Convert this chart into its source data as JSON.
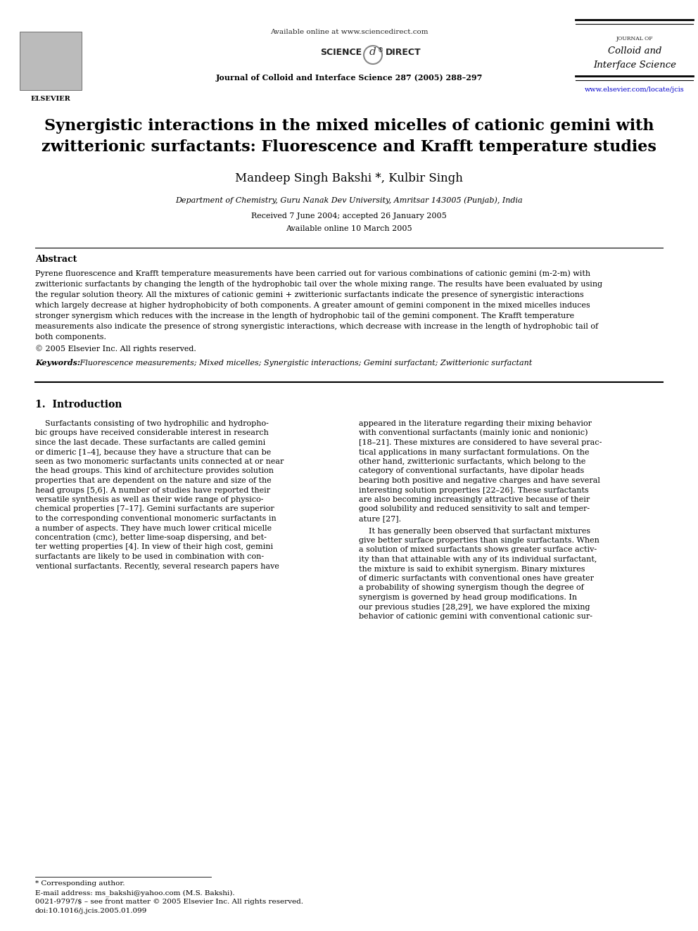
{
  "bg_color": "#ffffff",
  "page_width": 9.92,
  "page_height": 13.23,
  "header": {
    "available_online": "Available online at www.sciencedirect.com",
    "journal_name_bold": "Journal of Colloid and Interface Science 287 (2005) 288–297",
    "journal_right_small": "JOURNAL OF",
    "journal_right_large1": "Colloid and",
    "journal_right_large2": "Interface Science",
    "url": "www.elsevier.com/locate/jcis"
  },
  "title_line1": "Synergistic interactions in the mixed micelles of cationic gemini with",
  "title_line2": "zwitterionic surfactants: Fluorescence and Krafft temperature studies",
  "authors": "Mandeep Singh Bakshi *, Kulbir Singh",
  "affiliation": "Department of Chemistry, Guru Nanak Dev University, Amritsar 143005 (Punjab), India",
  "received": "Received 7 June 2004; accepted 26 January 2005",
  "available": "Available online 10 March 2005",
  "abstract_heading": "Abstract",
  "abstract_body": "Pyrene fluorescence and Krafft temperature measurements have been carried out for various combinations of cationic gemini (m-2-m) with\nzwitterionic surfactants by changing the length of the hydrophobic tail over the whole mixing range. The results have been evaluated by using\nthe regular solution theory. All the mixtures of cationic gemini + zwitterionic surfactants indicate the presence of synergistic interactions\nwhich largely decrease at higher hydrophobicity of both components. A greater amount of gemini component in the mixed micelles induces\nstronger synergism which reduces with the increase in the length of hydrophobic tail of the gemini component. The Krafft temperature\nmeasurements also indicate the presence of strong synergistic interactions, which decrease with increase in the length of hydrophobic tail of\nboth components.",
  "copyright": "© 2005 Elsevier Inc. All rights reserved.",
  "keywords_label": "Keywords:",
  "keywords_text": " Fluorescence measurements; Mixed micelles; Synergistic interactions; Gemini surfactant; Zwitterionic surfactant",
  "section1_heading": "1.  Introduction",
  "col1_para1": "    Surfactants consisting of two hydrophilic and hydropho-\nbic groups have received considerable interest in research\nsince the last decade. These surfactants are called gemini\nor dimeric [1–4], because they have a structure that can be\nseen as two monomeric surfactants units connected at or near\nthe head groups. This kind of architecture provides solution\nproperties that are dependent on the nature and size of the\nhead groups [5,6]. A number of studies have reported their\nversatile synthesis as well as their wide range of physico-\nchemical properties [7–17]. Gemini surfactants are superior\nto the corresponding conventional monomeric surfactants in\na number of aspects. They have much lower critical micelle\nconcentration (cmc), better lime-soap dispersing, and bet-\nter wetting properties [4]. In view of their high cost, gemini\nsurfactants are likely to be used in combination with con-\nventional surfactants. Recently, several research papers have",
  "col2_para1": "appeared in the literature regarding their mixing behavior\nwith conventional surfactants (mainly ionic and nonionic)\n[18–21]. These mixtures are considered to have several prac-\ntical applications in many surfactant formulations. On the\nother hand, zwitterionic surfactants, which belong to the\ncategory of conventional surfactants, have dipolar heads\nbearing both positive and negative charges and have several\ninteresting solution properties [22–26]. These surfactants\nare also becoming increasingly attractive because of their\ngood solubility and reduced sensitivity to salt and temper-\nature [27].",
  "col2_para2": "    It has generally been observed that surfactant mixtures\ngive better surface properties than single surfactants. When\na solution of mixed surfactants shows greater surface activ-\nity than that attainable with any of its individual surfactant,\nthe mixture is said to exhibit synergism. Binary mixtures\nof dimeric surfactants with conventional ones have greater\na probability of showing synergism though the degree of\nsynergism is governed by head group modifications. In\nour previous studies [28,29], we have explored the mixing\nbehavior of cationic gemini with conventional cationic sur-",
  "footnote1": "* Corresponding author.",
  "footnote2": "E-mail address: ms_bakshi@yahoo.com (M.S. Bakshi).",
  "footnote3": "0021-9797/$ – see front matter © 2005 Elsevier Inc. All rights reserved.",
  "footnote4": "doi:10.1016/j.jcis.2005.01.099"
}
